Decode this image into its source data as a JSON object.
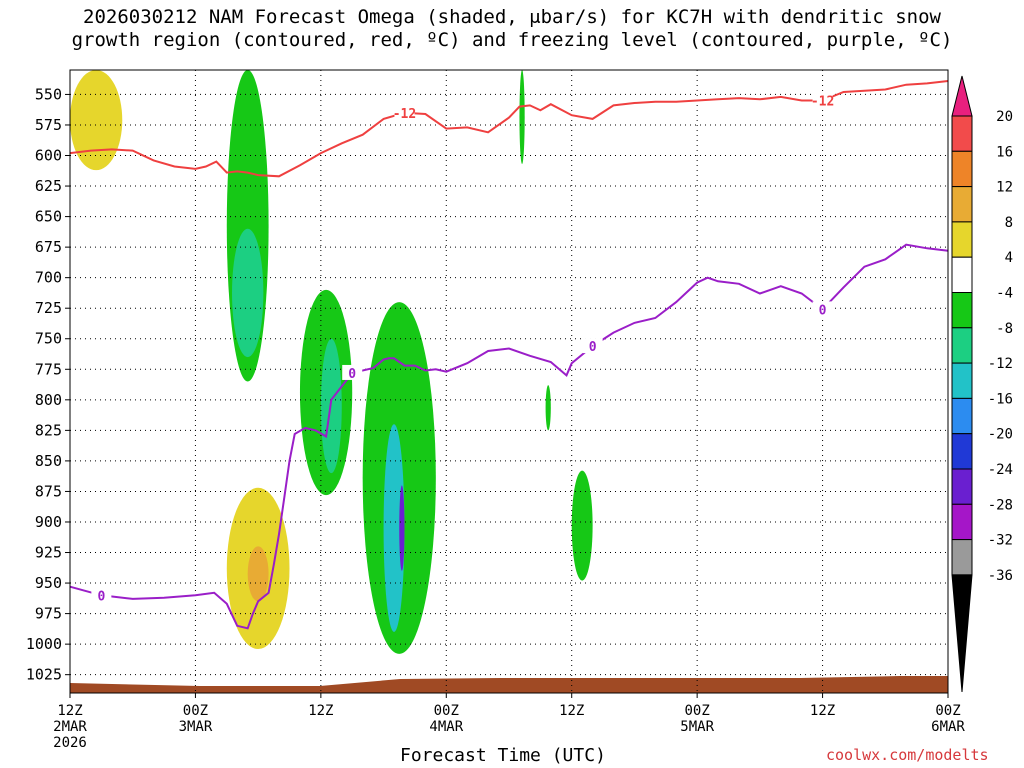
{
  "chart_data": {
    "type": "time-height cross section",
    "title_lines": [
      "2026030212 NAM Forecast Omega (shaded, μbar/s) for KC7H with dendritic snow",
      "growth region (contoured, red, ºC) and freezing level (contoured, purple, ºC)"
    ],
    "xlabel": "Forecast Time (UTC)",
    "credit": "coolwx.com/modelts",
    "x_ticks": [
      {
        "hour": 0,
        "lines": [
          "12Z",
          "2MAR",
          "2026"
        ]
      },
      {
        "hour": 12,
        "lines": [
          "00Z",
          "3MAR"
        ]
      },
      {
        "hour": 24,
        "lines": [
          "12Z"
        ]
      },
      {
        "hour": 36,
        "lines": [
          "00Z",
          "4MAR"
        ]
      },
      {
        "hour": 48,
        "lines": [
          "12Z"
        ]
      },
      {
        "hour": 60,
        "lines": [
          "00Z",
          "5MAR"
        ]
      },
      {
        "hour": 72,
        "lines": [
          "12Z"
        ]
      },
      {
        "hour": 84,
        "lines": [
          "00Z",
          "6MAR"
        ]
      }
    ],
    "x_range_hours": [
      0,
      84
    ],
    "y_range_hpa": [
      530,
      1040
    ],
    "y_ticks_hpa": [
      550,
      575,
      600,
      625,
      650,
      675,
      700,
      725,
      750,
      775,
      800,
      825,
      850,
      875,
      900,
      925,
      950,
      975,
      1000,
      1025
    ],
    "colorbar": {
      "labels": [
        "20",
        "16",
        "12",
        "8",
        "4",
        "-4",
        "-8",
        "-12",
        "-16",
        "-20",
        "-24",
        "-28",
        "-32",
        "-36"
      ],
      "bins": [
        {
          "range": [
            16,
            20
          ],
          "color": "#f24b4b"
        },
        {
          "range": [
            12,
            16
          ],
          "color": "#ee8428"
        },
        {
          "range": [
            8,
            12
          ],
          "color": "#e8ab34"
        },
        {
          "range": [
            4,
            8
          ],
          "color": "#e6d62c"
        },
        {
          "range": [
            -4,
            4
          ],
          "color": "#ffffff"
        },
        {
          "range": [
            -8,
            -4
          ],
          "color": "#16c816"
        },
        {
          "range": [
            -12,
            -8
          ],
          "color": "#1ccf82"
        },
        {
          "range": [
            -16,
            -12
          ],
          "color": "#22c2c8"
        },
        {
          "range": [
            -20,
            -16
          ],
          "color": "#2c8cf0"
        },
        {
          "range": [
            -24,
            -20
          ],
          "color": "#2039d6"
        },
        {
          "range": [
            -28,
            -24
          ],
          "color": "#6a1fd0"
        },
        {
          "range": [
            -32,
            -28
          ],
          "color": "#a516c8"
        },
        {
          "range": [
            -36,
            -32
          ],
          "color": "#9a9a9a"
        }
      ],
      "over_color": "#e8207e",
      "under_color": "#000000"
    },
    "dendritic_snow_level_hpa": {
      "label": "-12",
      "hours": [
        0,
        2,
        4,
        6,
        8,
        10,
        12,
        13,
        14,
        15,
        16,
        17,
        18,
        20,
        22,
        24,
        26,
        28,
        30,
        32,
        34,
        36,
        38,
        40,
        42,
        43,
        44,
        45,
        46,
        48,
        50,
        52,
        54,
        56,
        58,
        60,
        62,
        64,
        66,
        68,
        70,
        72,
        74,
        76,
        78,
        80,
        82,
        84
      ],
      "values": [
        598,
        596,
        595,
        596,
        604,
        609,
        611,
        609,
        605,
        614,
        613,
        614,
        616,
        617,
        608,
        598,
        590,
        583,
        570,
        565,
        566,
        578,
        577,
        581,
        569,
        560,
        559,
        563,
        558,
        567,
        570,
        559,
        557,
        556,
        556,
        555,
        554,
        553,
        554,
        552,
        555,
        555,
        548,
        547,
        546,
        542,
        541,
        539
      ]
    },
    "freezing_level_hpa": {
      "label": "0",
      "hours": [
        0,
        3,
        6,
        9,
        12,
        13.8,
        15,
        16,
        17,
        17.5,
        18,
        19,
        19.5,
        20,
        20.5,
        21,
        21.5,
        22.5,
        23.5,
        24.5,
        25,
        27,
        29,
        30,
        30.5,
        31,
        32,
        33,
        34,
        35,
        36,
        38,
        40,
        42,
        44,
        46,
        47.5,
        48,
        50,
        52,
        54,
        56,
        58,
        60,
        61,
        62,
        64,
        66,
        68,
        70,
        72,
        74,
        76,
        78,
        80,
        82,
        84
      ],
      "values": [
        953,
        960,
        963,
        962,
        960,
        958,
        967,
        985,
        987,
        975,
        965,
        958,
        935,
        910,
        880,
        850,
        828,
        823,
        825,
        830,
        800,
        778,
        774,
        767,
        766,
        766,
        772,
        772,
        776,
        775,
        777,
        770,
        760,
        758,
        764,
        769,
        780,
        770,
        756,
        745,
        737,
        733,
        720,
        704,
        700,
        703,
        705,
        713,
        707,
        713,
        726,
        708,
        691,
        685,
        673,
        676,
        678
      ]
    },
    "omega_regions": [
      {
        "band": "4 to 8",
        "hours": [
          0,
          5
        ],
        "pressure_hpa": [
          530,
          612
        ]
      },
      {
        "band": "4 to 8",
        "hours": [
          15,
          21
        ],
        "pressure_hpa": [
          872,
          1004
        ]
      },
      {
        "band": "8 to 12",
        "hours": [
          17,
          19
        ],
        "pressure_hpa": [
          920,
          965
        ]
      },
      {
        "band": "-4 to -8",
        "hours": [
          15,
          19
        ],
        "pressure_hpa": [
          530,
          785
        ]
      },
      {
        "band": "-8 to -12",
        "hours": [
          15.5,
          18.5
        ],
        "pressure_hpa": [
          660,
          765
        ]
      },
      {
        "band": "-4 to -8",
        "hours": [
          22,
          27
        ],
        "pressure_hpa": [
          710,
          878
        ]
      },
      {
        "band": "-8 to -12",
        "hours": [
          24,
          26
        ],
        "pressure_hpa": [
          750,
          860
        ]
      },
      {
        "band": "-4 to -8",
        "hours": [
          28,
          35
        ],
        "pressure_hpa": [
          720,
          1008
        ]
      },
      {
        "band": "-12 to -16",
        "hours": [
          30,
          32
        ],
        "pressure_hpa": [
          820,
          990
        ]
      },
      {
        "band": "-24 to -28",
        "hours": [
          31.5,
          32
        ],
        "pressure_hpa": [
          870,
          940
        ]
      },
      {
        "band": "-4 to -8",
        "hours": [
          43,
          43.5
        ],
        "pressure_hpa": [
          530,
          607
        ]
      },
      {
        "band": "-4 to -8",
        "hours": [
          45.5,
          46
        ],
        "pressure_hpa": [
          788,
          825
        ]
      },
      {
        "band": "-4 to -8",
        "hours": [
          48,
          50
        ],
        "pressure_hpa": [
          858,
          948
        ]
      }
    ]
  }
}
